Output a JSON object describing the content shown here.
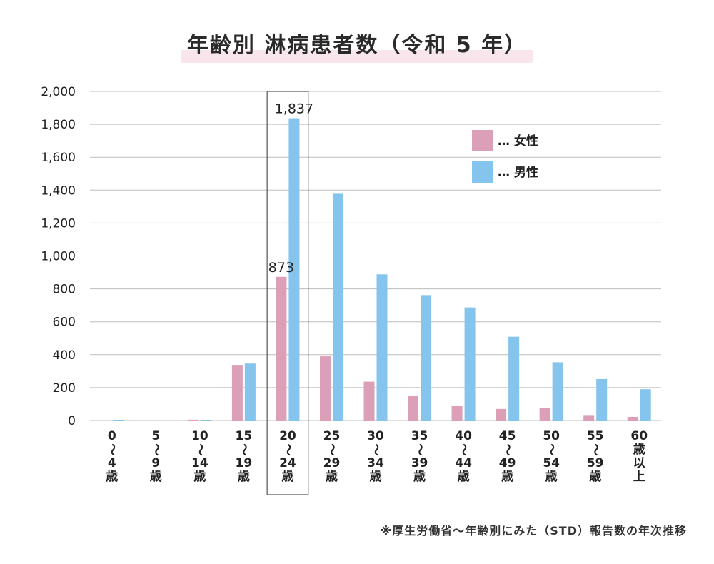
{
  "title": "年齢別 淋病患者数（令和 5 年）",
  "source_note": "※厚生労働省～年齢別にみた（STD）報告数の年次推移",
  "colors": {
    "female": "#dc9fb8",
    "male": "#85c4ec",
    "grid": "#bdbdbd",
    "highlight_border": "#555555"
  },
  "chart_data": {
    "type": "bar",
    "categories": [
      "0 〜 4 歳",
      "5 〜 9 歳",
      "10 〜 14 歳",
      "15 〜 19 歳",
      "20 〜 24 歳",
      "25 〜 29 歳",
      "30 〜 34 歳",
      "35 〜 39 歳",
      "40 〜 44 歳",
      "45 〜 49 歳",
      "50 〜 54 歳",
      "55 〜 59 歳",
      "60 歳 以 上"
    ],
    "category_lines": [
      [
        "0",
        "〜",
        "4",
        "歳"
      ],
      [
        "5",
        "〜",
        "9",
        "歳"
      ],
      [
        "10",
        "〜",
        "14",
        "歳"
      ],
      [
        "15",
        "〜",
        "19",
        "歳"
      ],
      [
        "20",
        "〜",
        "24",
        "歳"
      ],
      [
        "25",
        "〜",
        "29",
        "歳"
      ],
      [
        "30",
        "〜",
        "34",
        "歳"
      ],
      [
        "35",
        "〜",
        "39",
        "歳"
      ],
      [
        "40",
        "〜",
        "44",
        "歳"
      ],
      [
        "45",
        "〜",
        "49",
        "歳"
      ],
      [
        "50",
        "〜",
        "54",
        "歳"
      ],
      [
        "55",
        "〜",
        "59",
        "歳"
      ],
      [
        "60",
        "歳",
        "以",
        "上"
      ]
    ],
    "series": [
      {
        "name": "… 女性",
        "values": [
          0,
          0,
          5,
          338,
          873,
          390,
          236,
          152,
          87,
          70,
          76,
          33,
          22
        ]
      },
      {
        "name": "… 男性",
        "values": [
          1,
          0,
          2,
          346,
          1837,
          1378,
          888,
          762,
          687,
          509,
          354,
          252,
          190
        ]
      }
    ],
    "data_labels": [
      {
        "category_index": 4,
        "series_index": 0,
        "text": "873"
      },
      {
        "category_index": 4,
        "series_index": 1,
        "text": "1,837"
      }
    ],
    "highlight_category_index": 4,
    "ylim": [
      0,
      2000
    ],
    "yticks": [
      0,
      200,
      400,
      600,
      800,
      1000,
      1200,
      1400,
      1600,
      1800,
      2000
    ],
    "ytick_labels": [
      "0",
      "200",
      "400",
      "600",
      "800",
      "1,000",
      "1,200",
      "1,400",
      "1,600",
      "1,800",
      "2,000"
    ],
    "xlabel": "",
    "ylabel": "",
    "grid": true,
    "legend_position": "top-right"
  }
}
